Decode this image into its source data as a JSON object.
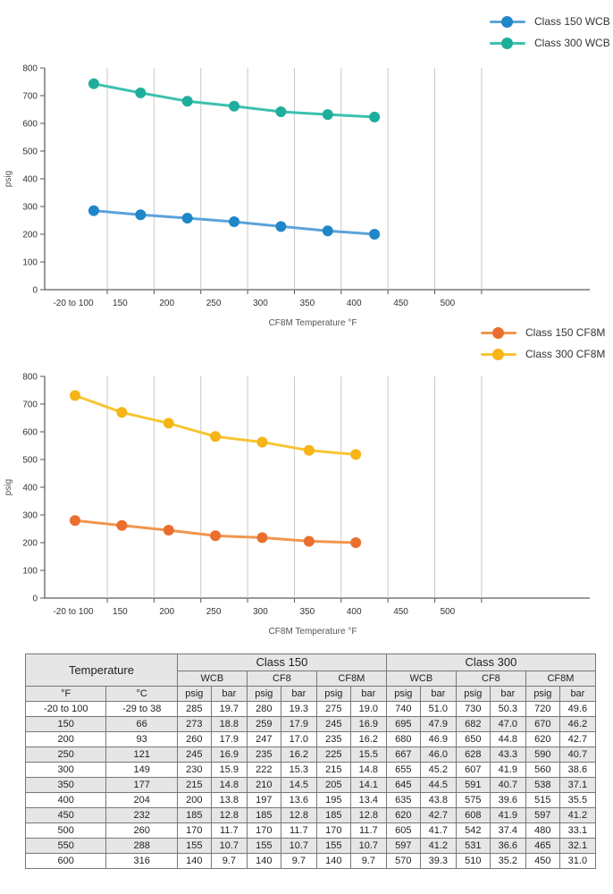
{
  "charts": [
    {
      "ylabel": "psig",
      "xlabel": "CF8M Temperature °F",
      "x_ticks": [
        "-20 to 100",
        "150",
        "200",
        "250",
        "300",
        "350",
        "400",
        "450",
        "500"
      ],
      "y_ticks": [
        "0",
        "100",
        "200",
        "300",
        "400",
        "500",
        "600",
        "700",
        "800"
      ]
    },
    {
      "ylabel": "psig",
      "xlabel": "CF8M Temperature °F",
      "x_ticks": [
        "-20 to 100",
        "150",
        "200",
        "250",
        "300",
        "350",
        "400",
        "450",
        "500"
      ],
      "y_ticks": [
        "0",
        "100",
        "200",
        "300",
        "400",
        "500",
        "600",
        "700",
        "800"
      ]
    }
  ],
  "chart_data": [
    {
      "type": "line",
      "xlabel": "CF8M Temperature °F",
      "ylabel": "psig",
      "ylim": [
        0,
        800
      ],
      "categories": [
        "-20 to 100",
        "150",
        "200",
        "250",
        "300",
        "350",
        "400",
        "450",
        "500"
      ],
      "x": [
        120,
        170,
        220,
        270,
        320,
        370,
        420
      ],
      "legend_position": "top-right",
      "grid": "vertical",
      "series": [
        {
          "name": "Class 150 WCB",
          "color": "#5ba3d9",
          "dot": "#1f86c8",
          "values": [
            285,
            270,
            258,
            245,
            228,
            212,
            200
          ]
        },
        {
          "name": "Class 300 WCB",
          "color": "#3cc1ae",
          "dot": "#1fae9b",
          "values": [
            743,
            710,
            680,
            662,
            642,
            632,
            623
          ]
        }
      ]
    },
    {
      "type": "line",
      "xlabel": "CF8M Temperature °F",
      "ylabel": "psig",
      "ylim": [
        0,
        800
      ],
      "categories": [
        "-20 to 100",
        "150",
        "200",
        "250",
        "300",
        "350",
        "400",
        "450",
        "500"
      ],
      "x": [
        100,
        150,
        200,
        250,
        300,
        350,
        400
      ],
      "legend_position": "top-right",
      "grid": "vertical",
      "series": [
        {
          "name": "Class 150 CF8M",
          "color": "#f0964f",
          "dot": "#ea6f2e",
          "values": [
            280,
            262,
            245,
            225,
            218,
            205,
            200
          ]
        },
        {
          "name": "Class 300 CF8M",
          "color": "#f7c532",
          "dot": "#f6b417",
          "values": [
            731,
            670,
            631,
            583,
            563,
            533,
            518
          ]
        }
      ]
    }
  ],
  "table": {
    "temperature_header": "Temperature",
    "class150_header": "Class 150",
    "class300_header": "Class 300",
    "materials": [
      "WCB",
      "CF8",
      "CF8M",
      "WCB",
      "CF8",
      "CF8M"
    ],
    "unit_f": "°F",
    "unit_c": "°C",
    "units": [
      "psig",
      "bar",
      "psig",
      "bar",
      "psig",
      "bar",
      "psig",
      "bar",
      "psig",
      "bar",
      "psig",
      "bar"
    ],
    "rows": [
      [
        "-20 to 100",
        "-29 to 38",
        "285",
        "19.7",
        "280",
        "19.3",
        "275",
        "19.0",
        "740",
        "51.0",
        "730",
        "50.3",
        "720",
        "49.6"
      ],
      [
        "150",
        "66",
        "273",
        "18.8",
        "259",
        "17.9",
        "245",
        "16.9",
        "695",
        "47.9",
        "682",
        "47.0",
        "670",
        "46.2"
      ],
      [
        "200",
        "93",
        "260",
        "17.9",
        "247",
        "17.0",
        "235",
        "16.2",
        "680",
        "46.9",
        "650",
        "44.8",
        "620",
        "42.7"
      ],
      [
        "250",
        "121",
        "245",
        "16.9",
        "235",
        "16.2",
        "225",
        "15.5",
        "667",
        "46.0",
        "628",
        "43.3",
        "590",
        "40.7"
      ],
      [
        "300",
        "149",
        "230",
        "15.9",
        "222",
        "15.3",
        "215",
        "14.8",
        "655",
        "45.2",
        "607",
        "41.9",
        "560",
        "38.6"
      ],
      [
        "350",
        "177",
        "215",
        "14.8",
        "210",
        "14.5",
        "205",
        "14.1",
        "645",
        "44.5",
        "591",
        "40.7",
        "538",
        "37.1"
      ],
      [
        "400",
        "204",
        "200",
        "13.8",
        "197",
        "13.6",
        "195",
        "13.4",
        "635",
        "43.8",
        "575",
        "39.6",
        "515",
        "35.5"
      ],
      [
        "450",
        "232",
        "185",
        "12.8",
        "185",
        "12.8",
        "185",
        "12.8",
        "620",
        "42.7",
        "608",
        "41.9",
        "597",
        "41.2"
      ],
      [
        "500",
        "260",
        "170",
        "11.7",
        "170",
        "11.7",
        "170",
        "11.7",
        "605",
        "41.7",
        "542",
        "37.4",
        "480",
        "33.1"
      ],
      [
        "550",
        "288",
        "155",
        "10.7",
        "155",
        "10.7",
        "155",
        "10.7",
        "597",
        "41.2",
        "531",
        "36.6",
        "465",
        "32.1"
      ],
      [
        "600",
        "316",
        "140",
        "9.7",
        "140",
        "9.7",
        "140",
        "9.7",
        "570",
        "39.3",
        "510",
        "35.2",
        "450",
        "31.0"
      ]
    ]
  }
}
